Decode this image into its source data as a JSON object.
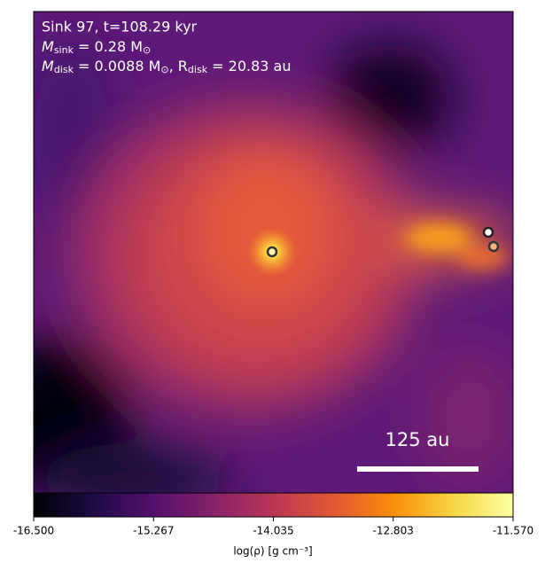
{
  "chart_data": {
    "type": "image",
    "annotations": [
      {
        "text": "Sink 97, t=108.29 kyr"
      },
      {
        "symbol": "M",
        "sub": "sink",
        "text": " = 0.28 M",
        "tail_sub": "⊙"
      },
      {
        "symbol": "M",
        "sub": "disk",
        "text": " = 0.0088 M",
        "tail_sub": "⊙",
        "second_symbol": ", R",
        "second_sub": "disk",
        "second_text": " = 20.83 au"
      }
    ],
    "scalebar_label": "125 au",
    "colorbar": {
      "label": "log(ρ) [g cm⁻³]",
      "colormap": "inferno",
      "clim": [
        -16.5,
        -11.57
      ],
      "ticks": [
        {
          "value": -16.5,
          "label": "-16.500"
        },
        -15.267,
        -14.035,
        -12.803,
        {
          "value": -11.57,
          "label": "-11.570"
        }
      ]
    }
  }
}
